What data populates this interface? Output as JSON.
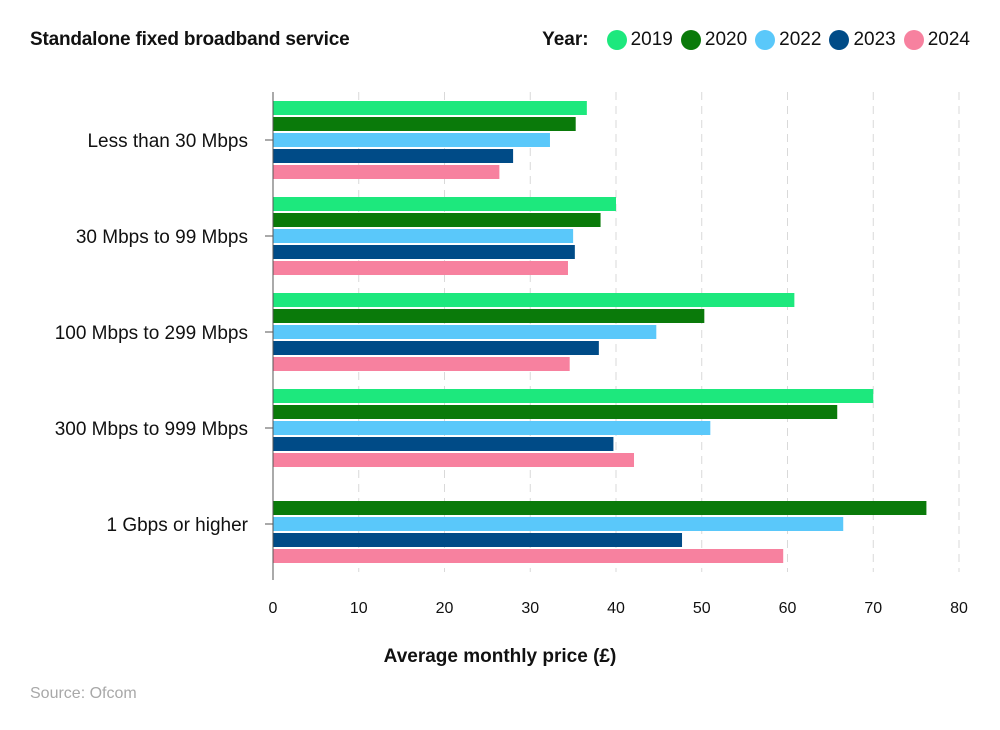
{
  "chart_data": {
    "type": "bar",
    "orientation": "horizontal",
    "title": "Standalone fixed broadband service",
    "legend_label": "Year:",
    "xlabel": "Average monthly price (£)",
    "ylabel": "",
    "xlim": [
      0,
      80
    ],
    "xticks": [
      "0",
      "10",
      "20",
      "30",
      "40",
      "50",
      "60",
      "70",
      "80"
    ],
    "grid": true,
    "legend_position": "top-right",
    "source": "Source: Ofcom",
    "categories": [
      "Less than 30 Mbps",
      "30 Mbps to 99 Mbps",
      "100 Mbps to 299 Mbps",
      "300 Mbps to 999 Mbps",
      "1 Gbps or higher"
    ],
    "series": [
      {
        "name": "2019",
        "color": "#1de87d",
        "values": [
          36.6,
          40.0,
          60.8,
          70.0,
          null
        ]
      },
      {
        "name": "2020",
        "color": "#0a7a0a",
        "values": [
          35.3,
          38.2,
          50.3,
          65.8,
          76.2
        ]
      },
      {
        "name": "2022",
        "color": "#5ac8fa",
        "values": [
          32.3,
          35.0,
          44.7,
          51.0,
          66.5
        ]
      },
      {
        "name": "2023",
        "color": "#004b87",
        "values": [
          28.0,
          35.2,
          38.0,
          39.7,
          47.7
        ]
      },
      {
        "name": "2024",
        "color": "#f7819f",
        "values": [
          26.4,
          34.4,
          34.6,
          42.1,
          59.5
        ]
      }
    ]
  }
}
